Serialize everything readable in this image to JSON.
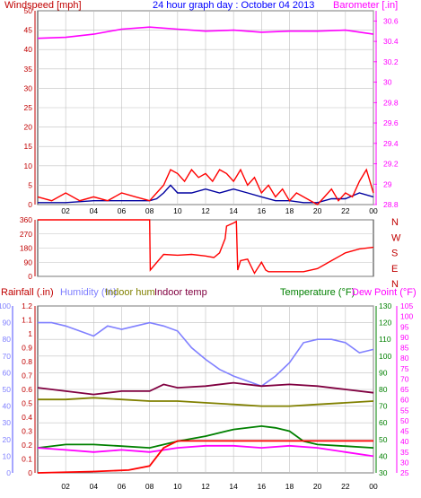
{
  "header": {
    "windspeed": "Windspeed [mph]",
    "title": "24 hour graph day : October 04 2013",
    "barometer": "Barometer [.in]"
  },
  "legend": {
    "rainfall": "Rainfall (.in)",
    "humidity": "Humidity (%)",
    "indoor_hum": "Indoor hum",
    "indoor_temp": "Indoor temp",
    "temperature": "Temperature (°F)",
    "dew_point": "Dew Point (°F)"
  },
  "colors": {
    "background": "#ffffff",
    "grid": "#c0c0c0",
    "windspeed": "#ff0000",
    "wind_avg": "#0000a0",
    "barometer": "#ff00ff",
    "direction": "#ff0000",
    "rainfall": "#ff0000",
    "humidity": "#8080ff",
    "indoor_hum": "#808000",
    "indoor_temp": "#800040",
    "temperature": "#008000",
    "dew_point": "#ff00ff",
    "title": "#0000ff"
  },
  "chart_data": [
    {
      "type": "line",
      "name": "wind-barometer",
      "x_ticks": [
        "02",
        "04",
        "06",
        "08",
        "10",
        "12",
        "14",
        "16",
        "18",
        "20",
        "22",
        "00"
      ],
      "left_axis": {
        "label": "Windspeed [mph]",
        "ylim": [
          0,
          50
        ],
        "ticks": [
          "0",
          "5",
          "10",
          "15",
          "20",
          "25",
          "30",
          "35",
          "40",
          "45",
          "50"
        ]
      },
      "right_axis": {
        "label": "Barometer [.in]",
        "ylim": [
          28.8,
          30.7
        ],
        "ticks": [
          "28.8",
          "29",
          "29.2",
          "29.4",
          "29.6",
          "29.8",
          "30",
          "30.2",
          "30.4",
          "30.6"
        ]
      },
      "series": [
        {
          "name": "Windspeed",
          "axis": "left",
          "color": "#ff0000",
          "x": [
            0,
            1,
            2,
            3,
            4,
            5,
            6,
            7,
            8,
            8.5,
            9,
            9.5,
            10,
            10.5,
            11,
            11.5,
            12,
            12.5,
            13,
            13.5,
            14,
            14.5,
            15,
            15.5,
            16,
            16.5,
            17,
            17.5,
            18,
            18.5,
            19,
            19.5,
            20,
            20.5,
            21,
            21.5,
            22,
            22.5,
            23,
            23.5,
            24
          ],
          "values": [
            2,
            1,
            3,
            1,
            2,
            1,
            3,
            2,
            1,
            3,
            5,
            9,
            8,
            6,
            9,
            7,
            8,
            6,
            9,
            8,
            6,
            9,
            5,
            7,
            3,
            5,
            2,
            4,
            1,
            3,
            2,
            1,
            0,
            2,
            4,
            1,
            3,
            2,
            6,
            9,
            3
          ]
        },
        {
          "name": "Wind average",
          "axis": "left",
          "color": "#0000a0",
          "x": [
            0,
            2,
            4,
            6,
            8,
            8.5,
            9,
            9.5,
            10,
            11,
            12,
            13,
            14,
            15,
            16,
            17,
            18,
            19,
            20,
            21,
            22,
            23,
            24
          ],
          "values": [
            0.5,
            0.5,
            1,
            1,
            1,
            1.5,
            3,
            5,
            3,
            3,
            4,
            3,
            4,
            3,
            2,
            1,
            1,
            0.5,
            0.5,
            1.5,
            1.5,
            3,
            2
          ]
        },
        {
          "name": "Barometer",
          "axis": "right",
          "color": "#ff00ff",
          "x": [
            0,
            2,
            4,
            6,
            8,
            10,
            12,
            14,
            16,
            18,
            20,
            22,
            24
          ],
          "values": [
            30.43,
            30.44,
            30.47,
            30.52,
            30.54,
            30.52,
            30.5,
            30.51,
            30.49,
            30.5,
            30.5,
            30.51,
            30.47
          ]
        }
      ]
    },
    {
      "type": "line",
      "name": "wind-direction",
      "left_ticks": [
        "0",
        "90",
        "180",
        "270",
        "360"
      ],
      "ylim": [
        0,
        360
      ],
      "right_labels": [
        "N",
        "W",
        "S",
        "E",
        "N"
      ],
      "series": [
        {
          "name": "Wind direction",
          "color": "#ff0000",
          "x": [
            0,
            8.0,
            8.05,
            9,
            10,
            11,
            12,
            12.6,
            13,
            13.4,
            13.5,
            14,
            14.2,
            14.3,
            14.5,
            15,
            15.5,
            16,
            16.3,
            16.5,
            18,
            19,
            20,
            21,
            22,
            23,
            24
          ],
          "values": [
            360,
            360,
            40,
            140,
            135,
            140,
            130,
            120,
            150,
            240,
            320,
            340,
            350,
            40,
            100,
            110,
            20,
            90,
            40,
            30,
            30,
            30,
            50,
            100,
            150,
            175,
            185
          ]
        }
      ]
    },
    {
      "type": "line",
      "name": "temp-humidity-rain",
      "x_ticks": [
        "02",
        "04",
        "06",
        "08",
        "10",
        "12",
        "14",
        "16",
        "18",
        "20",
        "22",
        "00"
      ],
      "rainfall_axis": {
        "label": "Rainfall (.in)",
        "ylim": [
          0,
          1.2
        ],
        "ticks": [
          "0",
          "0.1",
          "0.2",
          "0.3",
          "0.4",
          "0.5",
          "0.6",
          "0.7",
          "0.8",
          "0.9",
          "1",
          "1.1",
          "1.2"
        ]
      },
      "humidity_axis": {
        "label": "Humidity (%)",
        "ylim": [
          0,
          100
        ],
        "ticks": [
          "0",
          "10",
          "20",
          "30",
          "40",
          "50",
          "60",
          "70",
          "80",
          "90",
          "100"
        ]
      },
      "temperature_axis": {
        "label": "Temperature (°F)",
        "ylim": [
          30,
          130
        ],
        "ticks": [
          "30",
          "40",
          "50",
          "60",
          "70",
          "80",
          "90",
          "100",
          "110",
          "120",
          "130"
        ]
      },
      "dewpoint_axis": {
        "label": "Dew Point (°F)",
        "ylim": [
          25,
          105
        ],
        "ticks": [
          "25",
          "30",
          "35",
          "40",
          "45",
          "50",
          "55",
          "60",
          "65",
          "70",
          "75",
          "80",
          "85",
          "90",
          "95",
          "100",
          "105"
        ]
      },
      "series": [
        {
          "name": "Humidity (%)",
          "axis": "humidity",
          "color": "#8080ff",
          "x": [
            0,
            1,
            2,
            3,
            4,
            5,
            6,
            7,
            8,
            9,
            10,
            11,
            12,
            13,
            14,
            15,
            16,
            17,
            18,
            19,
            20,
            21,
            22,
            23,
            24
          ],
          "values": [
            90,
            90,
            88,
            85,
            82,
            88,
            86,
            88,
            90,
            88,
            85,
            75,
            68,
            62,
            58,
            55,
            52,
            58,
            66,
            78,
            80,
            80,
            78,
            72,
            74
          ]
        },
        {
          "name": "Indoor hum",
          "axis": "humidity",
          "color": "#808000",
          "x": [
            0,
            2,
            4,
            6,
            8,
            10,
            12,
            14,
            16,
            18,
            20,
            22,
            24
          ],
          "values": [
            44,
            44,
            45,
            44,
            43,
            43,
            42,
            41,
            40,
            40,
            41,
            42,
            43
          ]
        },
        {
          "name": "Indoor temp",
          "axis": "temperature",
          "color": "#800040",
          "x": [
            0,
            2,
            4,
            6,
            8,
            9,
            10,
            12,
            14,
            16,
            18,
            20,
            22,
            24
          ],
          "values": [
            81,
            79,
            77,
            79,
            79,
            83,
            81,
            82,
            84,
            82,
            83,
            82,
            80,
            78
          ]
        },
        {
          "name": "Temperature (°F)",
          "axis": "temperature",
          "color": "#008000",
          "x": [
            0,
            2,
            4,
            6,
            8,
            10,
            12,
            14,
            16,
            17,
            18,
            19,
            20,
            22,
            24
          ],
          "values": [
            45,
            47,
            47,
            46,
            45,
            49,
            52,
            56,
            58,
            57,
            55,
            49,
            47,
            46,
            45
          ]
        },
        {
          "name": "Dew Point (°F)",
          "axis": "dewpoint",
          "color": "#ff00ff",
          "x": [
            0,
            2,
            4,
            6,
            8,
            10,
            12,
            14,
            16,
            18,
            20,
            22,
            24
          ],
          "values": [
            37,
            36,
            35,
            36,
            35,
            37,
            38,
            38,
            37,
            38,
            37,
            35,
            33
          ]
        },
        {
          "name": "Rainfall (.in)",
          "axis": "rainfall",
          "color": "#ff0000",
          "x": [
            0,
            4,
            6.5,
            8,
            9,
            10,
            24
          ],
          "values": [
            0,
            0.01,
            0.02,
            0.05,
            0.18,
            0.23,
            0.23
          ]
        }
      ]
    }
  ]
}
